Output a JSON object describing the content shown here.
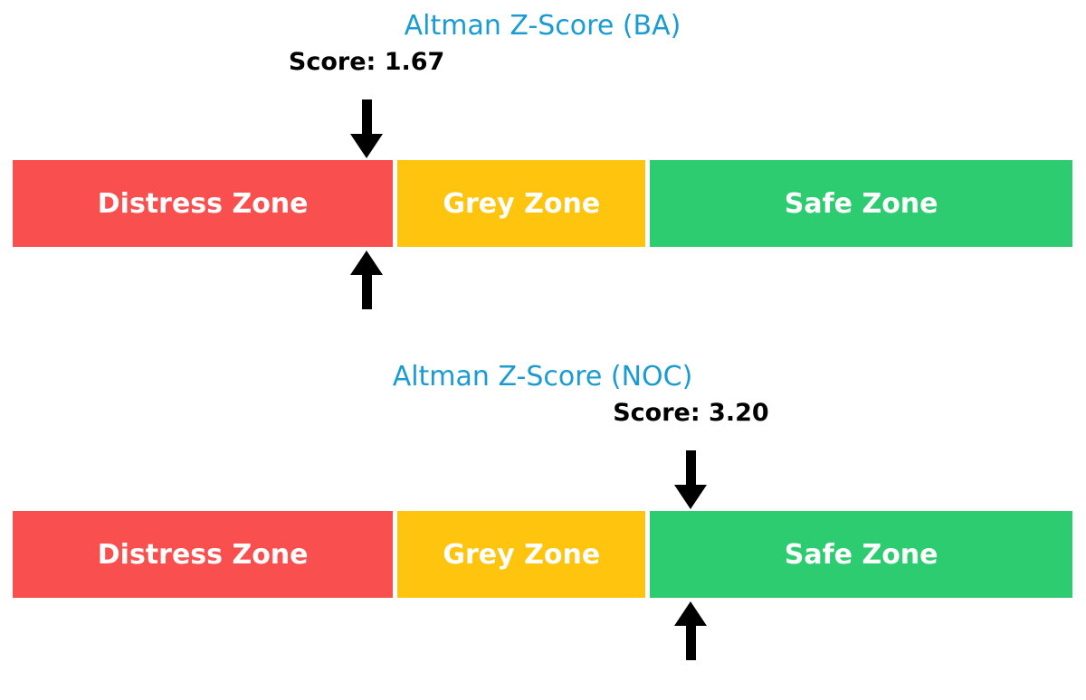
{
  "colors": {
    "title_text": "#1B9CD1",
    "score_text": "#000000",
    "arrow": "#000000",
    "zone_label_text": "#FFFFFF",
    "distress_red": "#F94F4F",
    "grey_yellow": "#FFC40D",
    "safe_green": "#2ECC71",
    "background": "#FFFFFF"
  },
  "chart_data": [
    {
      "type": "bar",
      "title": "Altman Z-Score (BA)",
      "score": 1.67,
      "score_label": "Score: 1.67",
      "axis_range": [
        0,
        5
      ],
      "grid": false,
      "legend": false,
      "marker": "black arrows above and below bar at score position",
      "zones": [
        {
          "label": "Distress Zone",
          "from": 0,
          "to": 1.81,
          "color": "#F94F4F"
        },
        {
          "label": "Grey Zone",
          "from": 1.81,
          "to": 2.99,
          "color": "#FFC40D"
        },
        {
          "label": "Safe Zone",
          "from": 2.99,
          "to": 5.0,
          "color": "#2ECC71"
        }
      ]
    },
    {
      "type": "bar",
      "title": "Altman Z-Score (NOC)",
      "score": 3.2,
      "score_label": "Score: 3.20",
      "axis_range": [
        0,
        5
      ],
      "grid": false,
      "legend": false,
      "marker": "black arrows above and below bar at score position",
      "zones": [
        {
          "label": "Distress Zone",
          "from": 0,
          "to": 1.81,
          "color": "#F94F4F"
        },
        {
          "label": "Grey Zone",
          "from": 1.81,
          "to": 2.99,
          "color": "#FFC40D"
        },
        {
          "label": "Safe Zone",
          "from": 2.99,
          "to": 5.0,
          "color": "#2ECC71"
        }
      ]
    }
  ]
}
